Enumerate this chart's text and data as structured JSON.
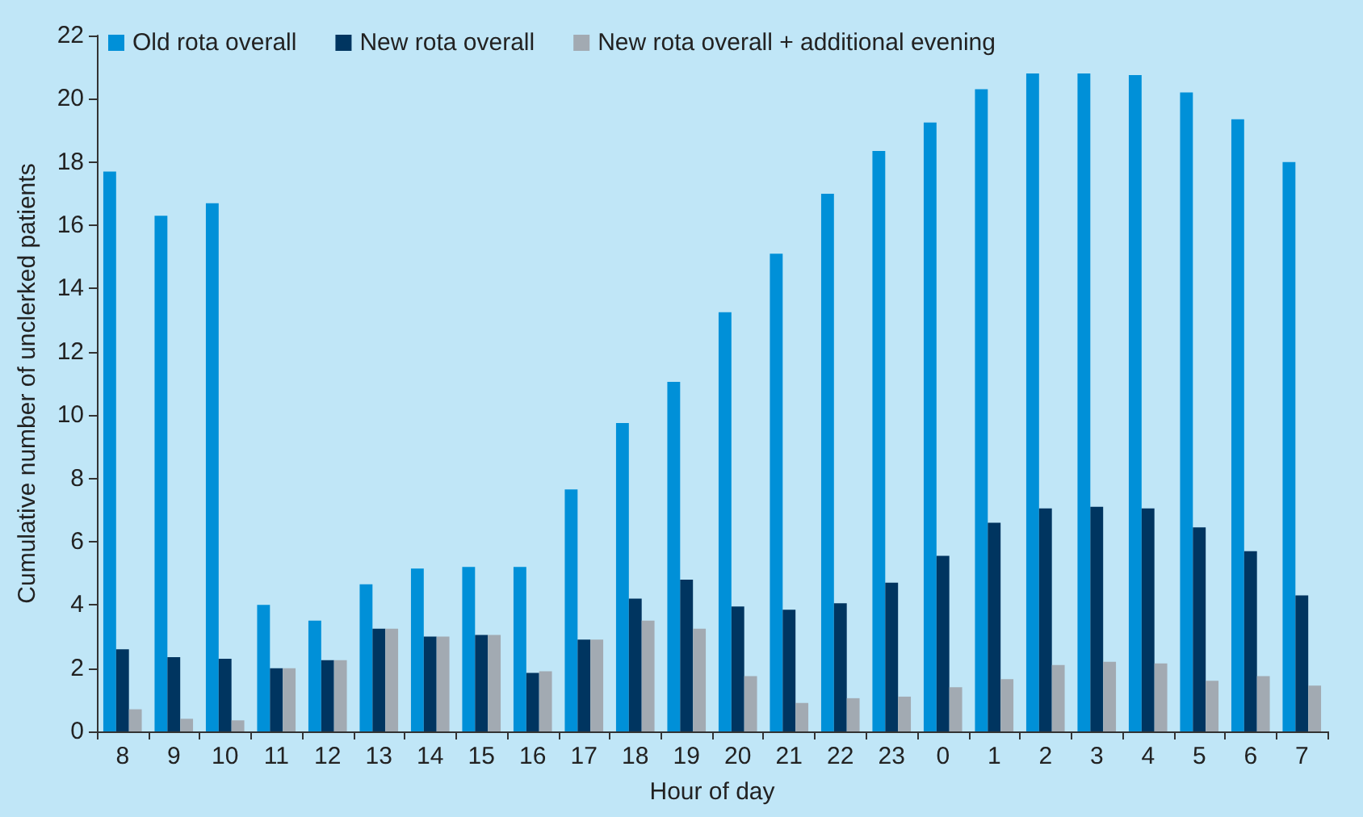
{
  "chart_data": {
    "type": "bar",
    "xlabel": "Hour of day",
    "ylabel": "Cumulative number of unclerked patients",
    "categories": [
      "8",
      "9",
      "10",
      "11",
      "12",
      "13",
      "14",
      "15",
      "16",
      "17",
      "18",
      "19",
      "20",
      "21",
      "22",
      "23",
      "0",
      "1",
      "2",
      "3",
      "4",
      "5",
      "6",
      "7"
    ],
    "series": [
      {
        "name": "Old rota overall",
        "color": "#0090d8",
        "values": [
          17.7,
          16.3,
          16.7,
          4.0,
          3.5,
          4.65,
          5.15,
          5.2,
          5.2,
          7.65,
          9.75,
          11.05,
          13.25,
          15.1,
          17.0,
          18.35,
          19.25,
          20.3,
          20.8,
          20.8,
          20.75,
          20.2,
          19.35,
          18.0
        ]
      },
      {
        "name": "New rota overall",
        "color": "#003560",
        "values": [
          2.6,
          2.35,
          2.3,
          2.0,
          2.25,
          3.25,
          3.0,
          3.05,
          1.85,
          2.9,
          4.2,
          4.8,
          3.95,
          3.85,
          4.05,
          4.7,
          5.55,
          6.6,
          7.05,
          7.1,
          7.05,
          6.45,
          5.7,
          4.3
        ]
      },
      {
        "name": "New rota overall + additional evening",
        "color": "#a2aab2",
        "values": [
          0.7,
          0.4,
          0.35,
          2.0,
          2.25,
          3.25,
          3.0,
          3.05,
          1.9,
          2.9,
          3.5,
          3.25,
          1.75,
          0.9,
          1.05,
          1.1,
          1.4,
          1.65,
          2.1,
          2.2,
          2.15,
          1.6,
          1.75,
          1.45
        ]
      }
    ],
    "ylim": [
      0,
      22
    ],
    "yticks": [
      0,
      2,
      4,
      6,
      8,
      10,
      12,
      14,
      16,
      18,
      20,
      22
    ],
    "grid": false,
    "legend": "top left"
  }
}
